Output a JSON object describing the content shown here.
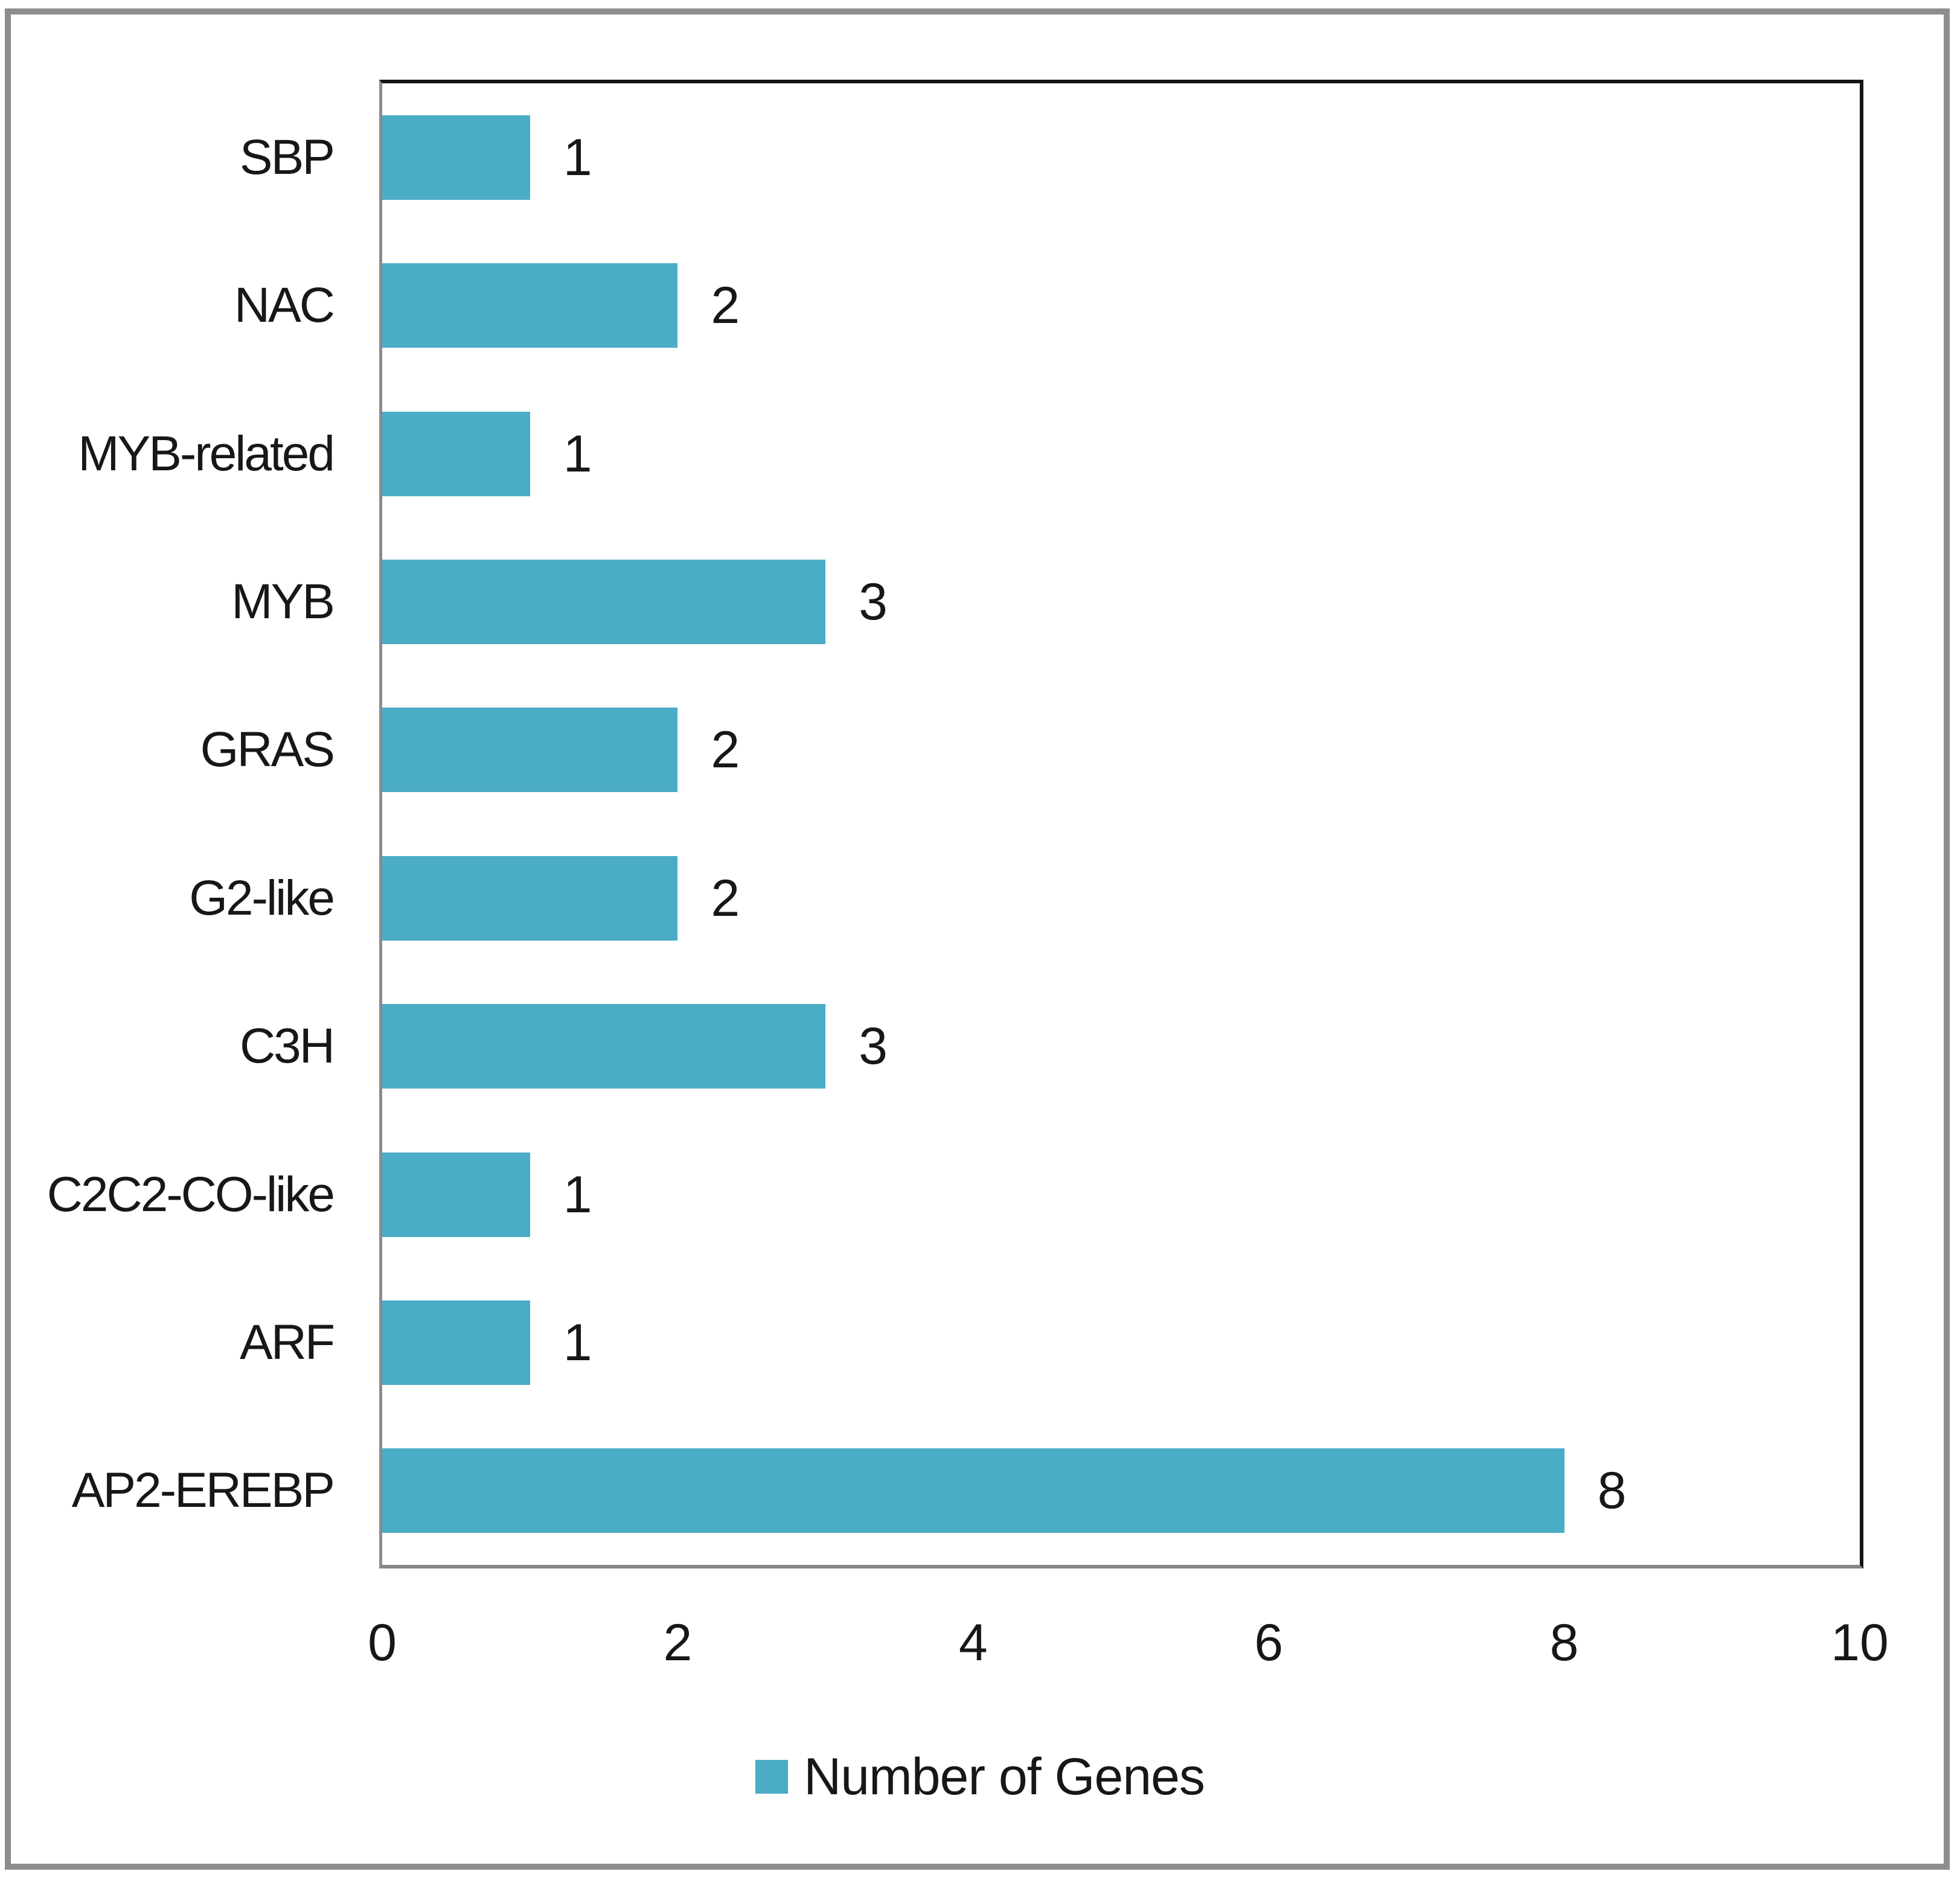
{
  "chart_data": {
    "type": "bar",
    "orientation": "horizontal",
    "title": "",
    "xlabel": "",
    "ylabel": "",
    "categories": [
      "SBP",
      "NAC",
      "MYB-related",
      "MYB",
      "GRAS",
      "G2-like",
      "C3H",
      "C2C2-CO-like",
      "ARF",
      "AP2-EREBP"
    ],
    "series": [
      {
        "name": "Number of Genes",
        "values": [
          1,
          2,
          1,
          3,
          2,
          2,
          3,
          1,
          1,
          8
        ]
      }
    ],
    "data_labels": [
      "1",
      "2",
      "1",
      "3",
      "2",
      "2",
      "3",
      "1",
      "1",
      "8"
    ],
    "xlim": [
      0,
      10
    ],
    "xticks": [
      0,
      2,
      4,
      6,
      8,
      10
    ],
    "grid": "off",
    "legend_position": "bottom-center",
    "series_name": "Number of Genes"
  },
  "legend": {
    "label": "Number of Genes"
  },
  "colors": {
    "bar": "#4BACC6",
    "plot_border": "#151515",
    "axis_line": "#8B8B8B",
    "frame": "#8D8D8D",
    "text": "#171717",
    "background": "#FFFFFF"
  }
}
